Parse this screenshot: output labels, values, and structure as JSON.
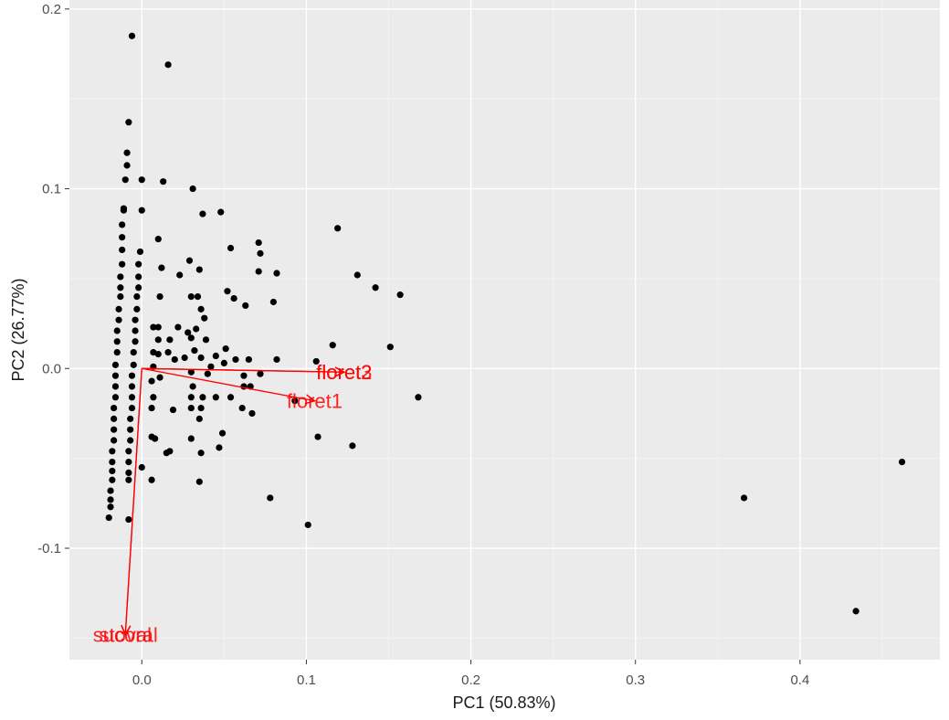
{
  "chart_data": {
    "type": "scatter",
    "subtype": "pca-biplot",
    "title": "",
    "xlabel": "PC1 (50.83%)",
    "ylabel": "PC2 (26.77%)",
    "xlim": [
      -0.044,
      0.485
    ],
    "ylim": [
      -0.162,
      0.205
    ],
    "xticks": [
      0.0,
      0.1,
      0.2,
      0.3,
      0.4
    ],
    "xtick_labels": [
      "0.0",
      "0.1",
      "0.2",
      "0.3",
      "0.4"
    ],
    "yticks": [
      -0.1,
      0.0,
      0.1,
      0.2
    ],
    "ytick_labels": [
      "-0.1",
      "0.0",
      "0.1",
      "0.2"
    ],
    "grid": true,
    "background": "#ebebeb",
    "point_color": "#000000",
    "loading_color": "#ff0000",
    "points": [
      {
        "x": -0.006,
        "y": 0.185
      },
      {
        "x": 0.016,
        "y": 0.169
      },
      {
        "x": -0.008,
        "y": 0.137
      },
      {
        "x": -0.009,
        "y": 0.12
      },
      {
        "x": -0.009,
        "y": 0.113
      },
      {
        "x": -0.01,
        "y": 0.105
      },
      {
        "x": 0.0,
        "y": 0.105
      },
      {
        "x": 0.013,
        "y": 0.104
      },
      {
        "x": 0.031,
        "y": 0.1
      },
      {
        "x": -0.011,
        "y": 0.089
      },
      {
        "x": -0.011,
        "y": 0.088
      },
      {
        "x": 0.0,
        "y": 0.088
      },
      {
        "x": 0.037,
        "y": 0.086
      },
      {
        "x": 0.048,
        "y": 0.087
      },
      {
        "x": 0.119,
        "y": 0.078
      },
      {
        "x": -0.012,
        "y": 0.08
      },
      {
        "x": -0.012,
        "y": 0.073
      },
      {
        "x": 0.01,
        "y": 0.072
      },
      {
        "x": 0.071,
        "y": 0.07
      },
      {
        "x": -0.012,
        "y": 0.066
      },
      {
        "x": -0.001,
        "y": 0.065
      },
      {
        "x": 0.054,
        "y": 0.067
      },
      {
        "x": 0.072,
        "y": 0.064
      },
      {
        "x": -0.012,
        "y": 0.058
      },
      {
        "x": -0.002,
        "y": 0.058
      },
      {
        "x": 0.029,
        "y": 0.06
      },
      {
        "x": 0.012,
        "y": 0.056
      },
      {
        "x": 0.035,
        "y": 0.055
      },
      {
        "x": 0.071,
        "y": 0.054
      },
      {
        "x": 0.082,
        "y": 0.053
      },
      {
        "x": 0.131,
        "y": 0.052
      },
      {
        "x": -0.013,
        "y": 0.051
      },
      {
        "x": -0.002,
        "y": 0.051
      },
      {
        "x": 0.023,
        "y": 0.052
      },
      {
        "x": -0.013,
        "y": 0.045
      },
      {
        "x": -0.002,
        "y": 0.045
      },
      {
        "x": 0.142,
        "y": 0.045
      },
      {
        "x": 0.052,
        "y": 0.043
      },
      {
        "x": -0.013,
        "y": 0.04
      },
      {
        "x": -0.003,
        "y": 0.04
      },
      {
        "x": 0.011,
        "y": 0.04
      },
      {
        "x": 0.03,
        "y": 0.04
      },
      {
        "x": 0.034,
        "y": 0.04
      },
      {
        "x": 0.056,
        "y": 0.039
      },
      {
        "x": 0.08,
        "y": 0.037
      },
      {
        "x": 0.157,
        "y": 0.041
      },
      {
        "x": -0.014,
        "y": 0.033
      },
      {
        "x": -0.003,
        "y": 0.033
      },
      {
        "x": 0.036,
        "y": 0.033
      },
      {
        "x": 0.063,
        "y": 0.035
      },
      {
        "x": -0.014,
        "y": 0.027
      },
      {
        "x": -0.004,
        "y": 0.027
      },
      {
        "x": 0.038,
        "y": 0.028
      },
      {
        "x": -0.015,
        "y": 0.021
      },
      {
        "x": -0.004,
        "y": 0.021
      },
      {
        "x": 0.007,
        "y": 0.023
      },
      {
        "x": 0.01,
        "y": 0.023
      },
      {
        "x": 0.022,
        "y": 0.023
      },
      {
        "x": 0.033,
        "y": 0.022
      },
      {
        "x": 0.028,
        "y": 0.02
      },
      {
        "x": -0.015,
        "y": 0.015
      },
      {
        "x": -0.004,
        "y": 0.015
      },
      {
        "x": 0.01,
        "y": 0.016
      },
      {
        "x": 0.017,
        "y": 0.016
      },
      {
        "x": 0.03,
        "y": 0.017
      },
      {
        "x": 0.039,
        "y": 0.016
      },
      {
        "x": 0.116,
        "y": 0.013
      },
      {
        "x": 0.151,
        "y": 0.012
      },
      {
        "x": -0.015,
        "y": 0.009
      },
      {
        "x": -0.005,
        "y": 0.009
      },
      {
        "x": 0.007,
        "y": 0.009
      },
      {
        "x": 0.01,
        "y": 0.008
      },
      {
        "x": 0.016,
        "y": 0.009
      },
      {
        "x": 0.032,
        "y": 0.01
      },
      {
        "x": 0.051,
        "y": 0.011
      },
      {
        "x": -0.016,
        "y": 0.002
      },
      {
        "x": -0.005,
        "y": 0.002
      },
      {
        "x": 0.02,
        "y": 0.005
      },
      {
        "x": 0.026,
        "y": 0.006
      },
      {
        "x": 0.036,
        "y": 0.006
      },
      {
        "x": 0.045,
        "y": 0.007
      },
      {
        "x": 0.057,
        "y": 0.005
      },
      {
        "x": 0.065,
        "y": 0.005
      },
      {
        "x": 0.082,
        "y": 0.005
      },
      {
        "x": 0.106,
        "y": 0.004
      },
      {
        "x": 0.007,
        "y": 0.001
      },
      {
        "x": 0.03,
        "y": -0.002
      },
      {
        "x": 0.042,
        "y": 0.001
      },
      {
        "x": 0.05,
        "y": 0.003
      },
      {
        "x": -0.016,
        "y": -0.004
      },
      {
        "x": -0.006,
        "y": -0.004
      },
      {
        "x": 0.04,
        "y": -0.003
      },
      {
        "x": 0.062,
        "y": -0.004
      },
      {
        "x": 0.072,
        "y": -0.003
      },
      {
        "x": 0.011,
        "y": -0.005
      },
      {
        "x": 0.006,
        "y": -0.007
      },
      {
        "x": -0.016,
        "y": -0.01
      },
      {
        "x": -0.006,
        "y": -0.01
      },
      {
        "x": 0.031,
        "y": -0.01
      },
      {
        "x": 0.062,
        "y": -0.01
      },
      {
        "x": 0.066,
        "y": -0.01
      },
      {
        "x": -0.016,
        "y": -0.016
      },
      {
        "x": -0.006,
        "y": -0.016
      },
      {
        "x": 0.007,
        "y": -0.016
      },
      {
        "x": 0.03,
        "y": -0.016
      },
      {
        "x": 0.037,
        "y": -0.016
      },
      {
        "x": 0.045,
        "y": -0.016
      },
      {
        "x": 0.054,
        "y": -0.016
      },
      {
        "x": 0.093,
        "y": -0.018
      },
      {
        "x": 0.168,
        "y": -0.016
      },
      {
        "x": -0.017,
        "y": -0.022
      },
      {
        "x": -0.006,
        "y": -0.022
      },
      {
        "x": 0.006,
        "y": -0.022
      },
      {
        "x": 0.019,
        "y": -0.023
      },
      {
        "x": 0.03,
        "y": -0.022
      },
      {
        "x": 0.036,
        "y": -0.022
      },
      {
        "x": 0.061,
        "y": -0.022
      },
      {
        "x": 0.067,
        "y": -0.025
      },
      {
        "x": -0.017,
        "y": -0.028
      },
      {
        "x": -0.007,
        "y": -0.028
      },
      {
        "x": 0.035,
        "y": -0.028
      },
      {
        "x": -0.017,
        "y": -0.034
      },
      {
        "x": -0.007,
        "y": -0.034
      },
      {
        "x": 0.049,
        "y": -0.036
      },
      {
        "x": 0.107,
        "y": -0.038
      },
      {
        "x": -0.017,
        "y": -0.04
      },
      {
        "x": -0.007,
        "y": -0.04
      },
      {
        "x": 0.006,
        "y": -0.038
      },
      {
        "x": 0.008,
        "y": -0.039
      },
      {
        "x": 0.03,
        "y": -0.039
      },
      {
        "x": 0.128,
        "y": -0.043
      },
      {
        "x": -0.018,
        "y": -0.046
      },
      {
        "x": -0.008,
        "y": -0.046
      },
      {
        "x": 0.015,
        "y": -0.047
      },
      {
        "x": 0.017,
        "y": -0.046
      },
      {
        "x": 0.036,
        "y": -0.047
      },
      {
        "x": 0.047,
        "y": -0.044
      },
      {
        "x": -0.018,
        "y": -0.052
      },
      {
        "x": -0.008,
        "y": -0.052
      },
      {
        "x": 0.0,
        "y": -0.055
      },
      {
        "x": -0.018,
        "y": -0.057
      },
      {
        "x": -0.008,
        "y": -0.058
      },
      {
        "x": -0.018,
        "y": -0.062
      },
      {
        "x": -0.008,
        "y": -0.062
      },
      {
        "x": 0.006,
        "y": -0.062
      },
      {
        "x": 0.035,
        "y": -0.063
      },
      {
        "x": -0.019,
        "y": -0.068
      },
      {
        "x": -0.019,
        "y": -0.073
      },
      {
        "x": 0.078,
        "y": -0.072
      },
      {
        "x": -0.019,
        "y": -0.077
      },
      {
        "x": -0.02,
        "y": -0.083
      },
      {
        "x": -0.008,
        "y": -0.084
      },
      {
        "x": 0.101,
        "y": -0.087
      },
      {
        "x": 0.366,
        "y": -0.072
      },
      {
        "x": 0.462,
        "y": -0.052
      },
      {
        "x": 0.434,
        "y": -0.135
      }
    ],
    "loadings": [
      {
        "label": "floret1",
        "x": 0.105,
        "y": -0.018
      },
      {
        "label": "floret2",
        "x": 0.123,
        "y": -0.002
      },
      {
        "label": "floret3",
        "x": 0.123,
        "y": -0.002
      },
      {
        "label": "sucoral",
        "x": -0.01,
        "y": -0.148
      },
      {
        "label": "stoval",
        "x": -0.01,
        "y": -0.148
      }
    ]
  }
}
